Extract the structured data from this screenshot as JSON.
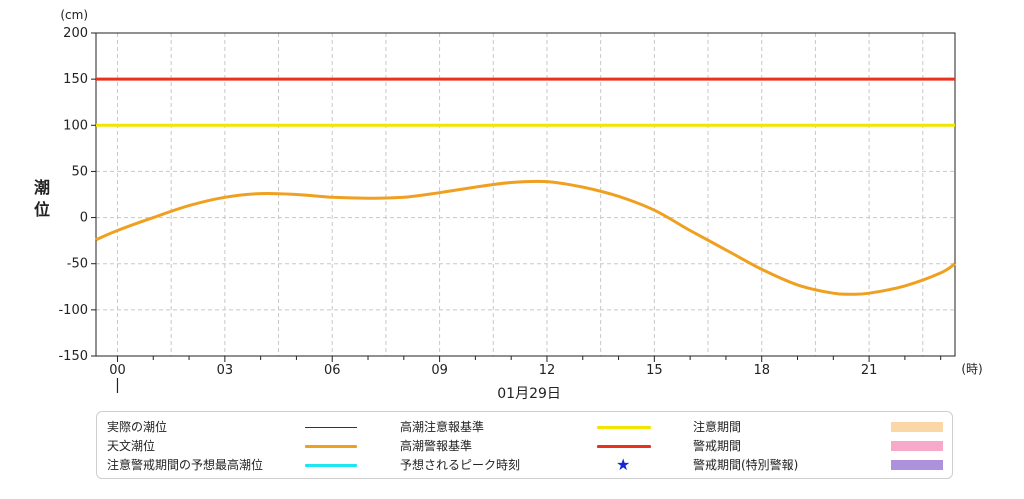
{
  "chart_data": {
    "type": "line",
    "ylabel": "潮位",
    "y_unit": "(cm)",
    "x_unit": "(時)",
    "date_label": "01月29日",
    "ylim": [
      -150,
      200
    ],
    "yticks": [
      -150,
      -100,
      -50,
      0,
      50,
      100,
      150,
      200
    ],
    "xlim": [
      -0.6,
      23.4
    ],
    "xticks": [
      {
        "x": 0,
        "label": "00"
      },
      {
        "x": 3,
        "label": "03"
      },
      {
        "x": 6,
        "label": "06"
      },
      {
        "x": 9,
        "label": "09"
      },
      {
        "x": 12,
        "label": "12"
      },
      {
        "x": 15,
        "label": "15"
      },
      {
        "x": 18,
        "label": "18"
      },
      {
        "x": 21,
        "label": "21"
      }
    ],
    "grid": true,
    "reference_lines": [
      {
        "name": "高潮警報基準",
        "value": 150,
        "color": "#e8321e"
      },
      {
        "name": "高潮注意報基準",
        "value": 100,
        "color": "#f2e600"
      }
    ],
    "series": [
      {
        "name": "天文潮位",
        "color": "#f0a020",
        "x": [
          -0.6,
          0,
          1,
          2,
          3,
          4,
          5,
          6,
          7,
          8,
          9,
          10,
          11,
          12,
          13,
          14,
          15,
          16,
          17,
          18,
          19,
          20,
          20.5,
          21,
          22,
          23,
          23.4
        ],
        "y": [
          -24,
          -14,
          0,
          13,
          22,
          26,
          25,
          22,
          21,
          22,
          27,
          33,
          38,
          39,
          33,
          23,
          8,
          -14,
          -35,
          -56,
          -73,
          -82,
          -83,
          -82,
          -74,
          -60,
          -50
        ]
      }
    ]
  },
  "legend": {
    "items": [
      {
        "label": "実際の潮位",
        "kind": "thin",
        "color": "#3a1f8a"
      },
      {
        "label": "天文潮位",
        "kind": "line",
        "color": "#f0a020"
      },
      {
        "label": "注意警戒期間の予想最高潮位",
        "kind": "line",
        "color": "#1ee6f0"
      },
      {
        "label": "高潮注意報基準",
        "kind": "line",
        "color": "#f2e600"
      },
      {
        "label": "高潮警報基準",
        "kind": "line",
        "color": "#e8321e"
      },
      {
        "label": "予想されるピーク時刻",
        "kind": "star",
        "color": "#1428d6",
        "symbol": "★"
      },
      {
        "label": "注意期間",
        "kind": "box",
        "color": "#fbd7a8"
      },
      {
        "label": "警戒期間",
        "kind": "box",
        "color": "#f6a9c8"
      },
      {
        "label": "警戒期間(特別警報)",
        "kind": "box",
        "color": "#ad91dc"
      }
    ]
  }
}
